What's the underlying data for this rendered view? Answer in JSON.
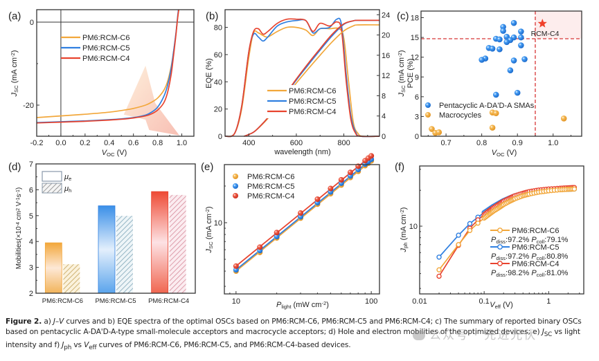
{
  "colors": {
    "C6": "#f2a73a",
    "C5": "#2f7fe0",
    "C4": "#e8432e",
    "axis": "#333333",
    "guide": "#d83535"
  },
  "caption": {
    "label": "Figure 2.",
    "text_1": " a) ",
    "jv": "J–V",
    "text_2": " curves and b) EQE spectra of the optimal OSCs based on PM6:RCM-C6, PM6:RCM-C5 and PM6:RCM-C4; c) The summary of reported binary OSCs based on pentacyclic A-DA'D-A-type small-molecule acceptors and macrocycle acceptors; d) Hole and electron mobilities of the optimized devices; e) ",
    "jsc": "J",
    "jsc_sub": "SC",
    "text_3": " vs light intensity and f) ",
    "jph": "J",
    "jph_sub": "ph",
    "text_4": " vs ",
    "veff": "V",
    "veff_sub": "eff",
    "text_5": " curves of PM6:RCM-C6, PM6:RCM-C5, and PM6:RCM-C4-based devices."
  },
  "watermark": "公众号 · 先进光伏",
  "chart_data": [
    {
      "panel": "(a)",
      "type": "line",
      "title": "",
      "xlabel": "V_OC (V)",
      "ylabel": "J_SC (mA cm^-2)",
      "xlim": [
        -0.2,
        1.1
      ],
      "ylim": [
        -27.5,
        3
      ],
      "xticks": [
        "-0.2",
        "0.0",
        "0.2",
        "0.4",
        "0.6",
        "0.8",
        "1.0"
      ],
      "xtick_values": [
        -0.2,
        0.0,
        0.2,
        0.4,
        0.6,
        0.8,
        1.0
      ],
      "yticks": [
        "0",
        "-20"
      ],
      "ytick_values": [
        0,
        -20
      ],
      "legend_position": "top-left",
      "annotation": "gradient arrow pointing down-right",
      "series": [
        {
          "name": "PM6:RCM-C6",
          "color_key": "C6",
          "x": [
            -0.2,
            0.0,
            0.2,
            0.4,
            0.5,
            0.6,
            0.7,
            0.75,
            0.8,
            0.85,
            0.88,
            0.91,
            0.93,
            0.95,
            0.96,
            0.97,
            0.98
          ],
          "y": [
            -23.0,
            -22.6,
            -22.2,
            -21.7,
            -21.3,
            -20.8,
            -20.0,
            -19.3,
            -18.3,
            -16.5,
            -14.5,
            -11.0,
            -7.5,
            -3.2,
            -0.5,
            2.0,
            4.0
          ]
        },
        {
          "name": "PM6:RCM-C5",
          "color_key": "C5",
          "x": [
            -0.2,
            0.0,
            0.2,
            0.4,
            0.5,
            0.6,
            0.7,
            0.75,
            0.8,
            0.85,
            0.88,
            0.91,
            0.93,
            0.95,
            0.96,
            0.97,
            0.98
          ],
          "y": [
            -24.2,
            -24.0,
            -23.8,
            -23.5,
            -23.3,
            -23.0,
            -22.4,
            -21.7,
            -20.5,
            -18.0,
            -15.5,
            -11.5,
            -7.5,
            -3.0,
            -0.2,
            2.5,
            4.5
          ]
        },
        {
          "name": "PM6:RCM-C4",
          "color_key": "C4",
          "x": [
            -0.2,
            0.0,
            0.2,
            0.4,
            0.5,
            0.6,
            0.7,
            0.75,
            0.8,
            0.85,
            0.88,
            0.91,
            0.93,
            0.95,
            0.96,
            0.97,
            0.98
          ],
          "y": [
            -24.3,
            -24.1,
            -23.9,
            -23.6,
            -23.4,
            -23.1,
            -22.6,
            -22.1,
            -21.2,
            -19.5,
            -17.2,
            -13.0,
            -8.5,
            -3.5,
            -0.5,
            2.0,
            4.0
          ]
        }
      ]
    },
    {
      "panel": "(b)",
      "type": "line",
      "title": "",
      "xlabel": "wavelength (nm)",
      "ylabel": "EQE (%)",
      "ylabel_right": "J_SC (mA cm^-2)",
      "xlim": [
        300,
        950
      ],
      "ylim": [
        0,
        93
      ],
      "ylim_right": [
        0,
        25
      ],
      "xticks": [
        "400",
        "600",
        "800"
      ],
      "xtick_values": [
        400,
        600,
        800
      ],
      "yticks": [
        "0",
        "20",
        "40",
        "60",
        "80"
      ],
      "ytick_values": [
        0,
        20,
        40,
        60,
        80
      ],
      "yticks_right": [
        "0",
        "4",
        "8",
        "12",
        "16",
        "20",
        "24"
      ],
      "ytick_values_right": [
        0,
        4,
        8,
        12,
        16,
        20,
        24
      ],
      "legend_position": "bottom-center",
      "series": [
        {
          "name": "PM6:RCM-C6",
          "color_key": "C6",
          "axis": "left",
          "x": [
            300,
            340,
            370,
            400,
            420,
            440,
            460,
            480,
            520,
            560,
            600,
            640,
            670,
            700,
            740,
            780,
            800,
            820,
            840,
            860,
            880,
            950
          ],
          "y": [
            0,
            2,
            20,
            58,
            76,
            76,
            74,
            73,
            77,
            80,
            80,
            78,
            74,
            79,
            79,
            79,
            72,
            40,
            10,
            2,
            0,
            0
          ]
        },
        {
          "name": "PM6:RCM-C5",
          "color_key": "C5",
          "axis": "left",
          "x": [
            300,
            340,
            370,
            400,
            420,
            440,
            460,
            480,
            520,
            560,
            600,
            640,
            670,
            700,
            740,
            770,
            790,
            810,
            830,
            850,
            870,
            950
          ],
          "y": [
            0,
            2,
            22,
            62,
            75,
            73,
            70,
            73,
            81,
            84,
            85,
            85,
            76,
            79,
            80,
            86,
            82,
            45,
            15,
            3,
            0,
            0
          ]
        },
        {
          "name": "PM6:RCM-C4",
          "color_key": "C4",
          "axis": "left",
          "x": [
            300,
            340,
            370,
            400,
            420,
            440,
            460,
            480,
            520,
            560,
            600,
            640,
            670,
            700,
            740,
            770,
            790,
            810,
            830,
            850,
            870,
            950
          ],
          "y": [
            0,
            2,
            22,
            62,
            77,
            79,
            75,
            77,
            83,
            86,
            86,
            85,
            77,
            83,
            81,
            84,
            78,
            40,
            12,
            2,
            0,
            0
          ]
        },
        {
          "name": "PM6:RCM-C6 integrated",
          "color_key": "C6",
          "axis": "right",
          "x": [
            380,
            420,
            460,
            500,
            550,
            600,
            650,
            700,
            750,
            800,
            840,
            860,
            950
          ],
          "y": [
            0,
            0.8,
            2.5,
            4.6,
            7.5,
            10.5,
            13.3,
            16.0,
            18.6,
            20.8,
            21.8,
            22.0,
            22.0
          ]
        },
        {
          "name": "PM6:RCM-C5 integrated",
          "color_key": "C5",
          "axis": "right",
          "x": [
            380,
            420,
            460,
            500,
            550,
            600,
            650,
            700,
            750,
            800,
            840,
            860,
            950
          ],
          "y": [
            0,
            0.8,
            2.6,
            4.8,
            7.9,
            11.1,
            14.1,
            17.0,
            19.8,
            22.1,
            22.8,
            22.9,
            22.9
          ]
        },
        {
          "name": "PM6:RCM-C4 integrated",
          "color_key": "C4",
          "axis": "right",
          "x": [
            380,
            420,
            460,
            500,
            550,
            600,
            650,
            700,
            750,
            800,
            840,
            860,
            950
          ],
          "y": [
            0,
            0.8,
            2.6,
            4.8,
            8.0,
            11.3,
            14.4,
            17.3,
            20.1,
            22.2,
            22.8,
            22.9,
            22.9
          ]
        }
      ]
    },
    {
      "panel": "(c)",
      "type": "scatter",
      "title": "",
      "xlabel": "V_OC (V)",
      "ylabel": "PCE (%)",
      "xlim": [
        0.63,
        1.08
      ],
      "ylim": [
        0,
        19
      ],
      "xticks": [
        "0.7",
        "0.8",
        "0.9",
        "1.0"
      ],
      "xtick_values": [
        0.7,
        0.8,
        0.9,
        1.0
      ],
      "yticks": [
        "0",
        "3",
        "6",
        "9",
        "12",
        "15",
        "18"
      ],
      "ytick_values": [
        0,
        3,
        6,
        9,
        12,
        15,
        18
      ],
      "legend_position": "bottom-left",
      "guides": {
        "x": 0.95,
        "y": 14.8
      },
      "annotation": {
        "label": "RCM-C4",
        "x": 0.97,
        "y": 17.1
      },
      "series": [
        {
          "name": "Pentacyclic A-DA'D-A SMAs",
          "color_key": "C5",
          "x": [
            0.89,
            0.86,
            0.86,
            0.91,
            0.84,
            0.85,
            0.87,
            0.89,
            0.91,
            0.88,
            0.87,
            0.91,
            0.82,
            0.83,
            0.85,
            0.81,
            0.8,
            0.89,
            0.92,
            0.88,
            0.84,
            0.9
          ],
          "y": [
            17.2,
            16.6,
            16.0,
            15.9,
            14.8,
            14.7,
            15.1,
            15.0,
            15.0,
            14.6,
            14.3,
            13.8,
            13.4,
            13.3,
            13.2,
            11.8,
            11.6,
            11.5,
            11.7,
            10.0,
            6.3,
            6.6
          ]
        },
        {
          "name": "Macrocycles",
          "color_key": "C6",
          "x": [
            0.66,
            0.67,
            0.68,
            0.83,
            0.84,
            0.83,
            1.03
          ],
          "y": [
            1.1,
            0.5,
            0.6,
            3.6,
            3.5,
            1.3,
            2.7
          ]
        }
      ]
    },
    {
      "panel": "(d)",
      "type": "bar",
      "title": "",
      "xlabel": "",
      "ylabel": "Mobilities (×10^-4 cm^2 V^-1 s^-1)",
      "ylim": [
        2,
        7
      ],
      "yticks": [
        "2",
        "3",
        "4",
        "5",
        "6",
        "7"
      ],
      "ytick_values": [
        2,
        3,
        4,
        5,
        6,
        7
      ],
      "categories": [
        "PM6:RCM-C6",
        "PM6:RCM-C5",
        "PM6:RCM-C4"
      ],
      "legend_position": "top-left",
      "series": [
        {
          "name": "μe",
          "style": "solid",
          "values": [
            3.95,
            5.38,
            5.93
          ]
        },
        {
          "name": "μh",
          "style": "hatched",
          "values": [
            3.12,
            4.99,
            5.8
          ]
        }
      ],
      "bar_color_keys": [
        "C6",
        "C5",
        "C4"
      ]
    },
    {
      "panel": "(e)",
      "type": "scatter",
      "title": "",
      "xlabel": "P_light (mW cm^-2)",
      "ylabel": "J_SC (mA cm^-2)",
      "xscale": "log",
      "yscale": "log",
      "xlim": [
        8.2,
        115
      ],
      "ylim": [
        2.6,
        30
      ],
      "xticks": [
        "10",
        "100"
      ],
      "xtick_values": [
        10,
        100
      ],
      "yticks": [
        "10"
      ],
      "ytick_values": [
        10
      ],
      "legend_position": "top-left",
      "x": [
        10,
        15,
        20,
        30,
        40,
        50,
        60,
        70,
        80,
        90,
        95,
        100
      ],
      "series": [
        {
          "name": "PM6:RCM-C6",
          "color_key": "C6",
          "values": [
            4.0,
            5.7,
            7.5,
            10.9,
            14.2,
            17.3,
            20.4,
            23.5,
            26.4,
            29.4,
            30.8,
            32.2
          ]
        },
        {
          "name": "PM6:RCM-C5",
          "color_key": "C5",
          "values": [
            4.1,
            5.9,
            7.7,
            11.2,
            14.6,
            17.9,
            21.1,
            24.2,
            27.3,
            30.3,
            31.8,
            33.2
          ]
        },
        {
          "name": "PM6:RCM-C4",
          "color_key": "C4",
          "values": [
            4.4,
            6.3,
            8.3,
            12.0,
            15.6,
            19.1,
            22.5,
            25.9,
            29.1,
            32.3,
            33.9,
            35.4
          ]
        }
      ]
    },
    {
      "panel": "(f)",
      "type": "line",
      "title": "",
      "xlabel": "V_eff (V)",
      "ylabel": "J_ph (mA cm^-2)",
      "xscale": "log",
      "yscale": "log",
      "xlim": [
        0.01,
        3.5
      ],
      "ylim": [
        2.7,
        32
      ],
      "xticks": [
        "0.01",
        "0.1",
        "1"
      ],
      "xtick_values": [
        0.01,
        0.1,
        1
      ],
      "yticks": [
        "10"
      ],
      "ytick_values": [
        10
      ],
      "legend_position": "bottom-right",
      "series": [
        {
          "name": "PM6:RCM-C6",
          "color_key": "C6",
          "P_diss": "97.2%",
          "P_coll": "79.1%",
          "x": [
            0.02,
            0.04,
            0.06,
            0.08,
            0.1,
            0.12,
            0.14,
            0.17,
            0.2,
            0.25,
            0.3,
            0.4,
            0.5,
            0.7,
            1.0,
            1.5,
            2.0,
            2.5
          ],
          "y": [
            4.3,
            7.0,
            9.2,
            10.6,
            11.7,
            12.6,
            13.4,
            14.3,
            15.2,
            16.2,
            17.0,
            18.0,
            18.6,
            19.3,
            19.8,
            20.2,
            20.4,
            20.5
          ]
        },
        {
          "name": "PM6:RCM-C5",
          "color_key": "C5",
          "P_diss": "97.2%",
          "P_coll": "80.8%",
          "x": [
            0.02,
            0.04,
            0.06,
            0.08,
            0.1,
            0.12,
            0.14,
            0.17,
            0.2,
            0.25,
            0.3,
            0.4,
            0.5,
            0.7,
            1.0,
            1.5,
            2.0,
            2.5
          ],
          "y": [
            5.5,
            8.4,
            10.5,
            11.9,
            13.0,
            13.9,
            14.7,
            15.6,
            16.4,
            17.3,
            18.0,
            18.8,
            19.3,
            19.8,
            20.1,
            20.3,
            20.4,
            20.5
          ]
        },
        {
          "name": "PM6:RCM-C4",
          "color_key": "C4",
          "P_diss": "98.2%",
          "P_coll": "81.0%",
          "x": [
            0.02,
            0.04,
            0.06,
            0.08,
            0.1,
            0.12,
            0.14,
            0.17,
            0.2,
            0.25,
            0.3,
            0.4,
            0.5,
            0.7,
            1.0,
            1.5,
            2.0,
            2.5
          ],
          "y": [
            3.8,
            6.9,
            9.6,
            11.3,
            12.5,
            13.5,
            14.3,
            15.3,
            16.2,
            17.2,
            18.0,
            18.9,
            19.5,
            20.1,
            20.5,
            20.8,
            21.0,
            21.1
          ]
        }
      ]
    }
  ]
}
